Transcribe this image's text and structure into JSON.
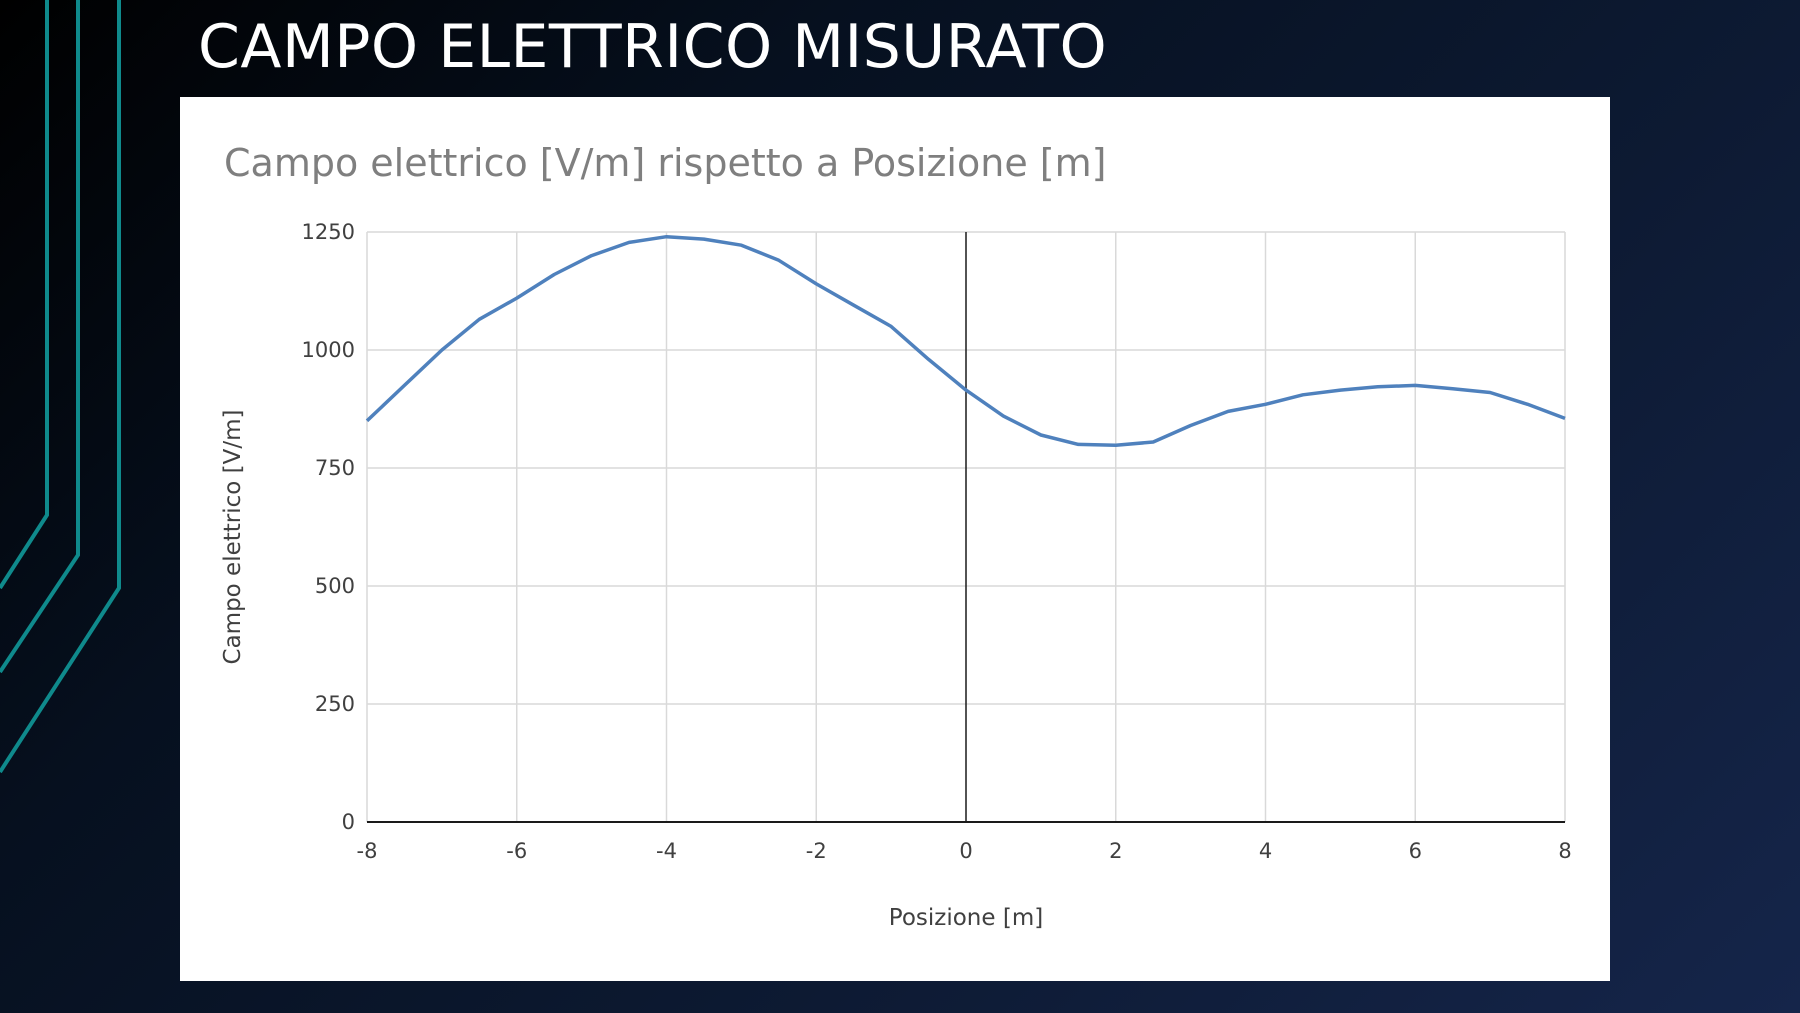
{
  "slide": {
    "title": "CAMPO ELETTRICO MISURATO"
  },
  "colors": {
    "decor_line": "#0f8a8c",
    "series_line": "#4f81bd"
  },
  "chart_data": {
    "type": "line",
    "title": "Campo elettrico [V/m] rispetto a Posizione [m]",
    "xlabel": "Posizione [m]",
    "ylabel": "Campo elettrico [V/m]",
    "xlim": [
      -8,
      8
    ],
    "ylim": [
      0,
      1250
    ],
    "xticks": [
      -8,
      -6,
      -4,
      -2,
      0,
      2,
      4,
      6,
      8
    ],
    "yticks": [
      0,
      250,
      500,
      750,
      1000,
      1250
    ],
    "grid": true,
    "legend": "none",
    "series": [
      {
        "x": [
          -8,
          -7.5,
          -7,
          -6.5,
          -6,
          -5.5,
          -5,
          -4.5,
          -4,
          -3.5,
          -3,
          -2.5,
          -2,
          -1.5,
          -1,
          -0.5,
          0,
          0.5,
          1,
          1.5,
          2,
          2.5,
          3,
          3.5,
          4,
          4.5,
          5,
          5.5,
          6,
          6.5,
          7,
          7.5,
          8
        ],
        "y": [
          850,
          925,
          1000,
          1065,
          1110,
          1160,
          1200,
          1228,
          1240,
          1235,
          1222,
          1190,
          1140,
          1095,
          1050,
          980,
          915,
          860,
          820,
          800,
          798,
          805,
          840,
          870,
          885,
          905,
          915,
          922,
          925,
          918,
          910,
          885,
          855
        ]
      }
    ]
  }
}
